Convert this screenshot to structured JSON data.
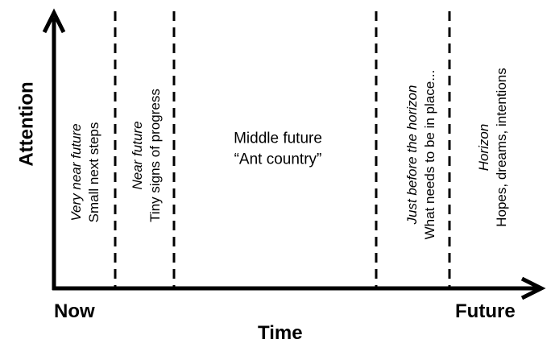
{
  "axes": {
    "y_label": "Attention",
    "x_label": "Time",
    "x_start_label": "Now",
    "x_end_label": "Future"
  },
  "zones": [
    {
      "title": "Very near future",
      "description": "Small next steps"
    },
    {
      "title": "Near future",
      "description": "Tiny signs of progress"
    },
    {
      "title": "Middle future",
      "description": "“Ant country”"
    },
    {
      "title": "Just before the horizon",
      "description": "What needs to be in place..."
    },
    {
      "title": "Horizon",
      "description": "Hopes, dreams, intentions"
    }
  ]
}
